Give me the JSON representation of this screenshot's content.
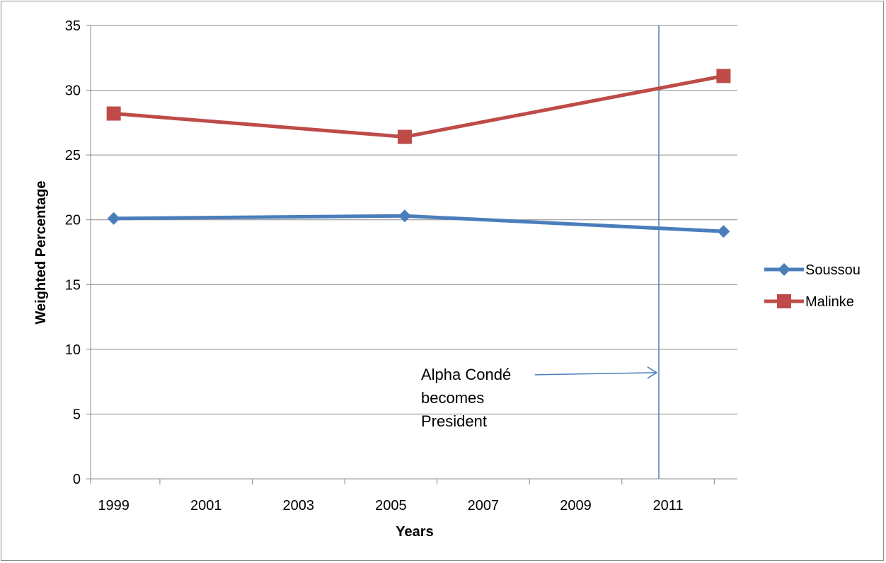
{
  "chart_data": {
    "type": "line",
    "title": "",
    "xlabel": "Years",
    "ylabel": "Weighted Percentage",
    "xlim": [
      1998.5,
      2012.5
    ],
    "ylim": [
      0,
      35
    ],
    "x_ticks": [
      1999,
      2001,
      2003,
      2005,
      2007,
      2009,
      2011
    ],
    "y_ticks": [
      0,
      5,
      10,
      15,
      20,
      25,
      30,
      35
    ],
    "grid": true,
    "legend_position": "right",
    "series": [
      {
        "name": "Soussou",
        "color": "#4a7ebb",
        "marker": "diamond",
        "x": [
          1999,
          2005.3,
          2012.2
        ],
        "y": [
          20.1,
          20.3,
          19.1
        ]
      },
      {
        "name": "Malinke",
        "color": "#be4b48",
        "marker": "square",
        "x": [
          1999,
          2005.3,
          2012.2
        ],
        "y": [
          28.2,
          26.4,
          31.1
        ]
      }
    ],
    "event_line": {
      "x": 2010.8,
      "color": "#4a7ebb"
    },
    "annotation": {
      "lines": [
        "Alpha Condé",
        "becomes",
        "President"
      ],
      "arrow_y": 8.2
    }
  }
}
